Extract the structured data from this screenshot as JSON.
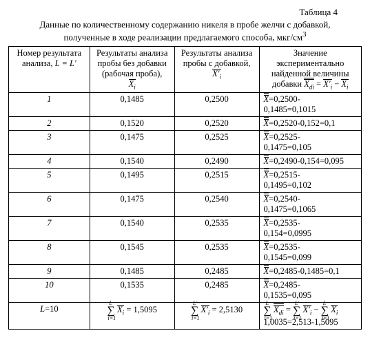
{
  "table_number": "Таблица 4",
  "caption_l1": "Данные по количественному содержанию никеля в пробе желчи с добавкой,",
  "caption_l2": "полученные в ходе реализации предлагаемого способа, мкг/см",
  "caption_sup": "3",
  "headers": {
    "h1a": "Номер результата",
    "h1b": "анализа,  ",
    "h1c": "L = L′",
    "h2a": "Результаты анализа",
    "h2b": "пробы без добавки",
    "h2c": "(рабочая проба),",
    "h3a": "Результаты анализа",
    "h3b": "пробы с добавкой,",
    "h4a": "Значение",
    "h4b": "экспериментально",
    "h4c": "найденной величины",
    "h4d": "добавки ",
    "xi": "X",
    "xi_sub": "i",
    "xip": "X′",
    "xip_sub": "i",
    "xdi": "X",
    "xdi_sub": "di",
    "eq": " = ",
    "minus": " − "
  },
  "rows": [
    {
      "n": "1",
      "a": "0,1485",
      "b": "0,2500",
      "d1": "=0,2500-",
      "d2": "0,1485=0,1015"
    },
    {
      "n": "2",
      "a": "0,1520",
      "b": "0,2520",
      "d1": "=0,2520-0,152=0,1",
      "d2": ""
    },
    {
      "n": "3",
      "a": "0,1475",
      "b": "0,2525",
      "d1": "=0,2525-",
      "d2": "0,1475=0,105"
    },
    {
      "n": "4",
      "a": "0,1540",
      "b": "0,2490",
      "d1": "=0,2490-0,154=0,095",
      "d2": ""
    },
    {
      "n": "5",
      "a": "0,1495",
      "b": "0,2515",
      "d1": "=0,2515-",
      "d2": "0,1495=0,102"
    },
    {
      "n": "6",
      "a": "0,1475",
      "b": "0,2540",
      "d1": "=0,2540-",
      "d2": "0,1475=0,1065"
    },
    {
      "n": "7",
      "a": "0,1540",
      "b": "0,2535",
      "d1": "=0,2535-",
      "d2": "0,154=0,0995"
    },
    {
      "n": "8",
      "a": "0,1545",
      "b": "0,2535",
      "d1": "=0,2535-",
      "d2": "0,1545=0,099"
    },
    {
      "n": "9",
      "a": "0,1485",
      "b": "0,2485",
      "d1": "=0,2485-0,1485=0,1",
      "d2": ""
    },
    {
      "n": "10",
      "a": "0,1535",
      "b": "0,2485",
      "d1": "=0,2485-",
      "d2": "0,1535=0,095"
    }
  ],
  "footer": {
    "L": "L",
    "Lval": "=10",
    "sum1": " = 1,5095",
    "sum2": " = 2,5130",
    "sum3a": " = ",
    "sum3b": " − ",
    "res": "1,0035=2,513-1,5095"
  },
  "widths": {
    "c1": "23%",
    "c2": "24%",
    "c3": "24%",
    "c4": "29%"
  }
}
